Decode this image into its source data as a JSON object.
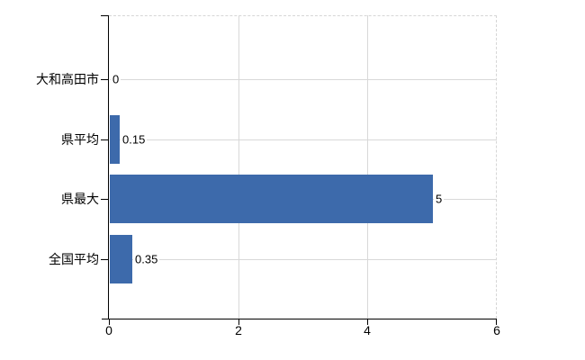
{
  "chart_data": {
    "type": "bar",
    "orientation": "horizontal",
    "title": "",
    "categories": [
      "大和高田市",
      "県平均",
      "県最大",
      "全国平均"
    ],
    "values": [
      0,
      0.15,
      5,
      0.35
    ],
    "value_labels": [
      "0",
      "0.15",
      "5",
      "0.35"
    ],
    "xlabel": "",
    "ylabel": "",
    "xlim": [
      0,
      6
    ],
    "x_ticks": [
      0,
      2,
      4,
      6
    ],
    "x_tick_labels": [
      "0",
      "2",
      "4",
      "6"
    ],
    "grid": true,
    "legend": false,
    "colors": {
      "bar": "#3d6aab",
      "grid": "#d8d8d8",
      "plot_border": "#d6d6d6",
      "axis": "#000000",
      "text": "#000000",
      "background": "#ffffff"
    }
  }
}
